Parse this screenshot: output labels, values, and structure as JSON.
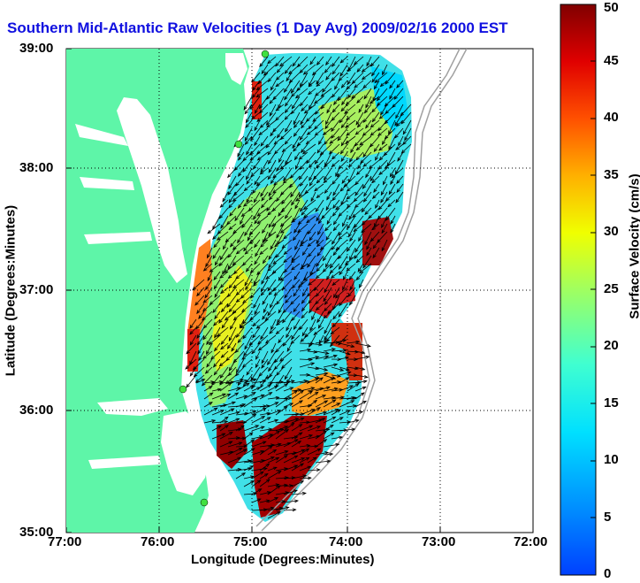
{
  "title": "Southern Mid-Atlantic Raw Velocities (1 Day Avg) 2009/02/16 2000 EST",
  "xlabel": "Longitude (Degrees:Minutes)",
  "ylabel": "Latitude (Degrees:Minutes)",
  "colorbar": {
    "label": "Surface Velocity (cm/s)",
    "min": 0,
    "max": 50,
    "ticks": [
      "0",
      "5",
      "10",
      "15",
      "20",
      "25",
      "30",
      "35",
      "40",
      "45",
      "50"
    ]
  },
  "x_ticks": [
    "77:00",
    "76:00",
    "75:00",
    "74:00",
    "73:00",
    "72:00"
  ],
  "y_ticks": [
    "39:00",
    "38:00",
    "37:00",
    "36:00",
    "35:00"
  ],
  "colors": {
    "land": "#5ef5a8",
    "title": "#1010e0",
    "background": "#ffffff",
    "station": "#40e040"
  },
  "legend_placement": "right colorbar",
  "grid": "dotted"
}
